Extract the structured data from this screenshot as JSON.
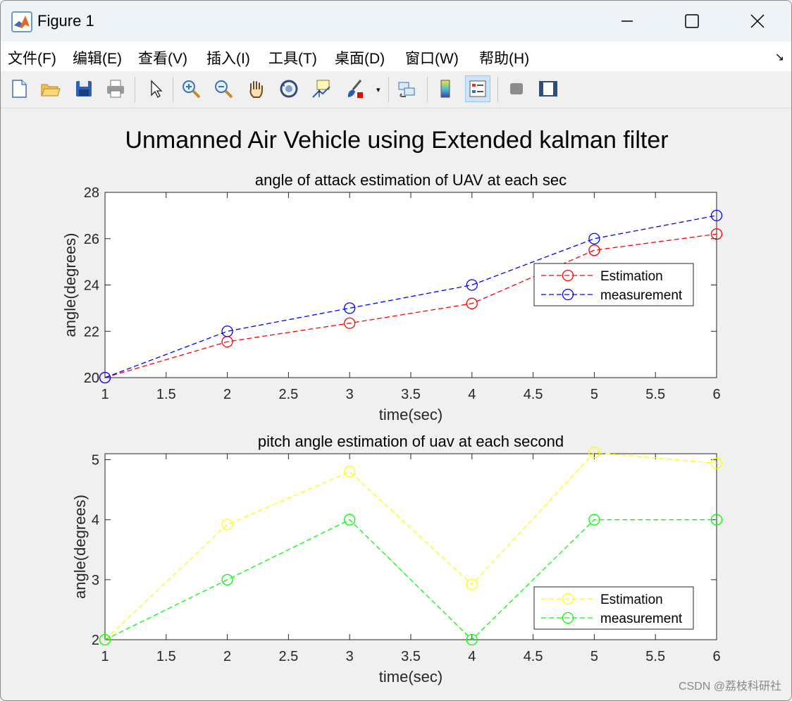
{
  "window": {
    "title": "Figure 1"
  },
  "menu": {
    "items": [
      "文件(F)",
      "编辑(E)",
      "查看(V)",
      "插入(I)",
      "工具(T)",
      "桌面(D)",
      "窗口(W)",
      "帮助(H)"
    ],
    "overflow_arrow": "↘"
  },
  "toolbar": {
    "icons": [
      "new-figure-icon",
      "open-file-icon",
      "save-icon",
      "print-icon",
      "pointer-icon",
      "zoom-in-icon",
      "zoom-out-icon",
      "pan-hand-icon",
      "rotate-3d-icon",
      "data-cursor-icon",
      "brush-icon",
      "link-plot-icon",
      "colorbar-icon",
      "legend-icon",
      "hide-plot-tools-icon",
      "show-plot-tools-icon"
    ],
    "active": "legend-icon"
  },
  "figure": {
    "suptitle": "Unmanned Air Vehicle using Extended kalman filter"
  },
  "chart_data": [
    {
      "type": "line",
      "title": "angle of attack estimation of UAV at each sec",
      "xlabel": "time(sec)",
      "ylabel": "angle(degrees)",
      "xlim": [
        1,
        6
      ],
      "ylim": [
        20,
        28
      ],
      "xticks": [
        "1",
        "1.5",
        "2",
        "2.5",
        "3",
        "3.5",
        "4",
        "4.5",
        "5",
        "5.5",
        "6"
      ],
      "yticks": [
        "20",
        "22",
        "24",
        "26",
        "28"
      ],
      "x": [
        1,
        2,
        3,
        4,
        5,
        6
      ],
      "series": [
        {
          "name": "Estimation",
          "color": "#ff0000",
          "values": [
            20.0,
            21.55,
            22.35,
            23.2,
            25.5,
            26.2
          ]
        },
        {
          "name": "measurement",
          "color": "#0000ff",
          "values": [
            20,
            22,
            23,
            24,
            26,
            27
          ]
        }
      ],
      "legend": "center-right",
      "grid": false
    },
    {
      "type": "line",
      "title": "pitch angle estimation of uav at each second",
      "xlabel": "time(sec)",
      "ylabel": "angle(degrees)",
      "xlim": [
        1,
        6
      ],
      "ylim": [
        2,
        5.1
      ],
      "xticks": [
        "1",
        "1.5",
        "2",
        "2.5",
        "3",
        "3.5",
        "4",
        "4.5",
        "5",
        "5.5",
        "6"
      ],
      "yticks": [
        "2",
        "3",
        "4",
        "5"
      ],
      "x": [
        1,
        2,
        3,
        4,
        5,
        6
      ],
      "series": [
        {
          "name": "Estimation",
          "color": "#ffff00",
          "values": [
            2.0,
            3.92,
            4.8,
            2.92,
            5.12,
            4.94
          ]
        },
        {
          "name": "measurement",
          "color": "#00ff00",
          "values": [
            2,
            3,
            4,
            2,
            4,
            4
          ]
        }
      ],
      "legend": "bottom-right",
      "grid": false
    }
  ],
  "watermark": "CSDN @荔枝科研社"
}
